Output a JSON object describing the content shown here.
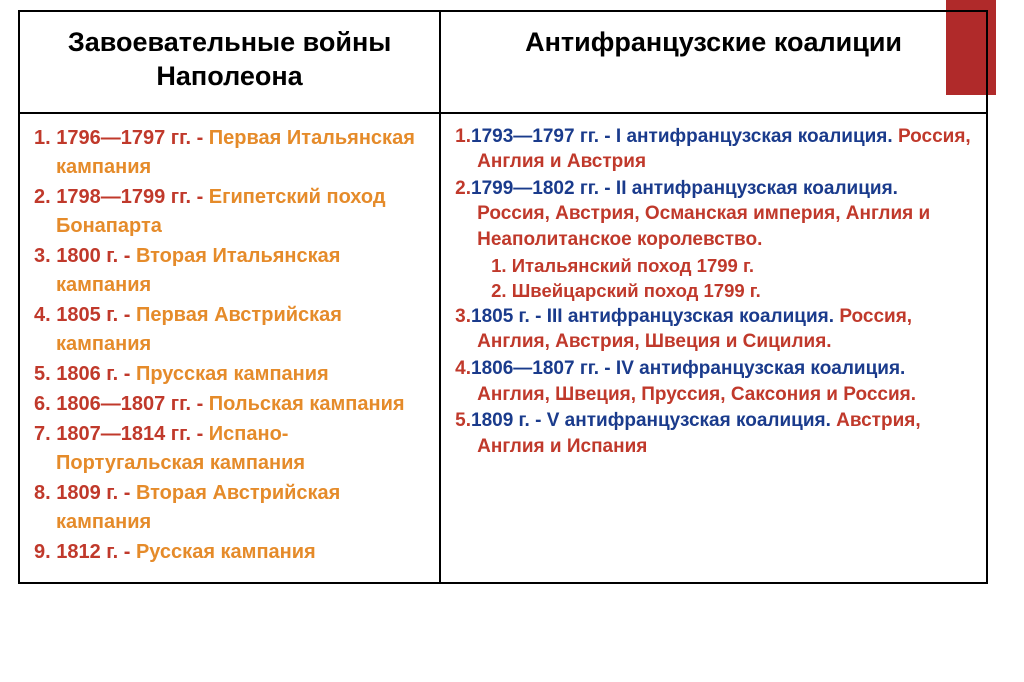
{
  "accent_color": "#b02a2a",
  "left": {
    "header": "Завоевательные войны Наполеона",
    "items": [
      {
        "num": "1.",
        "date": "1796—1797 гг.",
        "dash": " - ",
        "desc": "Первая Итальянская кампания"
      },
      {
        "num": "2.",
        "date": "1798—1799 гг.",
        "dash": " - ",
        "desc": "Египетский поход Бонапарта"
      },
      {
        "num": "3.",
        "date": "1800 г.",
        "dash": " - ",
        "desc": "Вторая Итальянская кампания"
      },
      {
        "num": "4.",
        "date": "1805 г.",
        "dash": " - ",
        "desc": "Первая Австрийская кампания"
      },
      {
        "num": "5.",
        "date": "1806 г.",
        "dash": " - ",
        "desc": "Прусская кампания"
      },
      {
        "num": "6.",
        "date": "1806—1807 гг.",
        "dash": " - ",
        "desc": "Польская кампания"
      },
      {
        "num": "7.",
        "date": "1807—1814 гг.",
        "dash": " - ",
        "desc": "Испано-Португальская кампания"
      },
      {
        "num": "8.",
        "date": "1809 г.",
        "dash": " - ",
        "desc": "Вторая Австрийская кампания"
      },
      {
        "num": "9.",
        "date": "1812 г.",
        "dash": " - ",
        "desc": "Русская кампания"
      }
    ]
  },
  "right": {
    "header": "Антифранцузские коалиции",
    "items": [
      {
        "num": "1.",
        "date": "1793—1797 гг.",
        "dash": " - ",
        "desc_blue": "I антифранцузская коалиция. ",
        "desc_red": "Россия, Англия и Австрия"
      },
      {
        "num": "2.",
        "date": "1799—1802 гг.",
        "dash": " - ",
        "desc_blue": "II антифранцузская коалиция. ",
        "desc_red": "Россия, Австрия, Османская империя, Англия и Неаполитанское королевство.",
        "sub": [
          {
            "num": "1.",
            "text": "Итальянский поход 1799 г."
          },
          {
            "num": "2.",
            "text": "Швейцарский поход 1799 г."
          }
        ]
      },
      {
        "num": "3.",
        "date": "1805 г.",
        "dash": " - ",
        "desc_blue": "III антифранцузская коалиция. ",
        "desc_red": "Россия, Англия, Австрия, Швеция и Сицилия."
      },
      {
        "num": "4.",
        "date": "1806—1807 гг.",
        "dash": " - ",
        "desc_blue": "IV антифранцузская коалиция. ",
        "desc_red": "Англия, Швеция, Пруссия, Саксония и Россия."
      },
      {
        "num": "5.",
        "date": "1809 г.",
        "dash": " - ",
        "desc_blue": "V антифранцузская коалиция. ",
        "desc_red": "Австрия, Англия и Испания"
      }
    ]
  }
}
